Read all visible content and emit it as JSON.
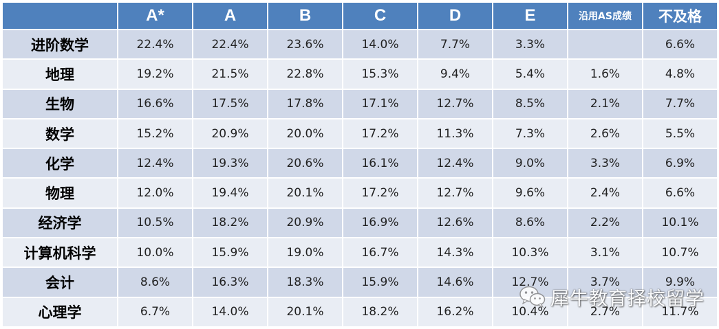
{
  "header": [
    "A*",
    "A",
    "B",
    "C",
    "D",
    "E",
    "沿用AS成绩",
    "不及格"
  ],
  "rows": [
    {
      "subject": "进阶数学",
      "values": [
        "22.4%",
        "22.4%",
        "23.6%",
        "14.0%",
        "7.7%",
        "3.3%",
        "",
        "6.6%"
      ]
    },
    {
      "subject": "地理",
      "values": [
        "19.2%",
        "21.5%",
        "22.8%",
        "15.3%",
        "9.4%",
        "5.4%",
        "1.6%",
        "4.8%"
      ]
    },
    {
      "subject": "生物",
      "values": [
        "16.6%",
        "17.5%",
        "17.8%",
        "17.1%",
        "12.7%",
        "8.5%",
        "2.1%",
        "7.7%"
      ]
    },
    {
      "subject": "数学",
      "values": [
        "15.2%",
        "20.9%",
        "20.0%",
        "17.2%",
        "11.3%",
        "7.3%",
        "2.6%",
        "5.5%"
      ]
    },
    {
      "subject": "化学",
      "values": [
        "12.4%",
        "19.3%",
        "20.6%",
        "16.1%",
        "12.4%",
        "9.0%",
        "3.3%",
        "6.9%"
      ]
    },
    {
      "subject": "物理",
      "values": [
        "12.0%",
        "19.4%",
        "20.1%",
        "17.2%",
        "12.7%",
        "9.6%",
        "2.4%",
        "6.6%"
      ]
    },
    {
      "subject": "经济学",
      "values": [
        "10.5%",
        "18.2%",
        "20.9%",
        "16.9%",
        "12.6%",
        "8.6%",
        "2.2%",
        "10.1%"
      ]
    },
    {
      "subject": "计算机科学",
      "values": [
        "10.0%",
        "15.9%",
        "19.0%",
        "16.7%",
        "14.3%",
        "10.3%",
        "3.1%",
        "10.7%"
      ]
    },
    {
      "subject": "会计",
      "values": [
        "8.6%",
        "16.3%",
        "18.3%",
        "15.9%",
        "14.6%",
        "12.7%",
        "3.7%",
        "9.9%"
      ]
    },
    {
      "subject": "心理学",
      "values": [
        "6.7%",
        "14.0%",
        "20.1%",
        "18.2%",
        "16.2%",
        "10.4%",
        "2.7%",
        "11.7%"
      ]
    }
  ],
  "watermark": {
    "text": "犀牛教育择校留学",
    "icon": "wechat-icon"
  },
  "colors": {
    "header_bg": "#4f81bd",
    "row_dark": "#d0d8e8",
    "row_light": "#e9edf4"
  }
}
